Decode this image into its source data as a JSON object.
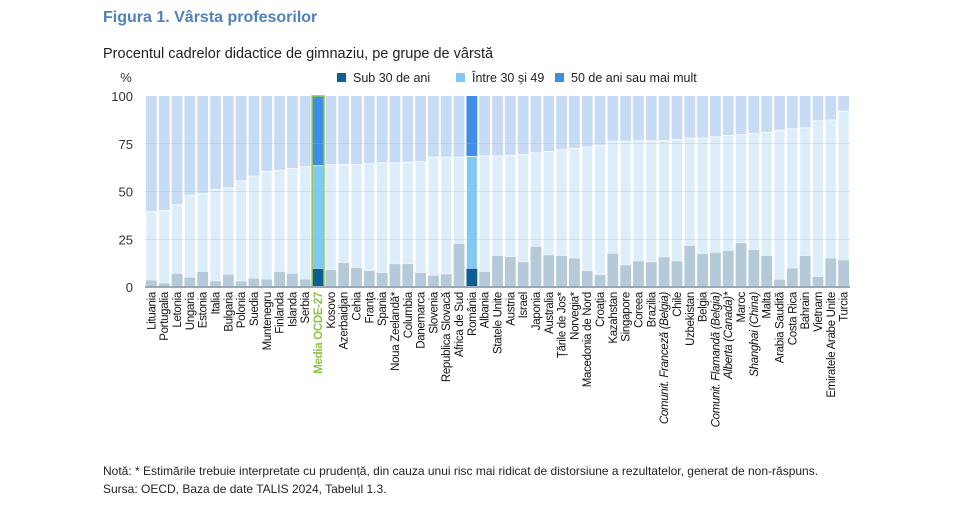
{
  "title": "Figura 1. Vârsta profesorilor",
  "subtitle": "Procentul cadrelor didactice de gimnaziu, pe grupe de vârstă",
  "note": "Notă: * Estimările trebuie interpretate cu prudență, din cauza unui risc mai ridicat de distorsiune a rezultatelor, generat de non-răspuns.",
  "source": "Sursa: OECD, Baza de date TALIS 2024, Tabelul 1.3.",
  "colors": {
    "u30": "#b5cad9",
    "m3049": "#ddeefa",
    "o50": "#c8dbf5",
    "hu30": "#0b5e96",
    "hm3049": "#80c9f2",
    "ho50": "#3f8de6",
    "oecd": "#8cc63f",
    "title": "#4f81bd"
  },
  "chart_data": {
    "type": "bar",
    "stacked": true,
    "ylabel": "%",
    "ylim": [
      0,
      100
    ],
    "yticks": [
      "0",
      "25",
      "50",
      "75",
      "100"
    ],
    "grid": true,
    "legend_placement": "top",
    "series_names": [
      "Sub 30 de ani",
      "Între 30 și 49",
      "50 de ani sau mai mult"
    ],
    "categories": [
      "Lituania",
      "Portugalia",
      "Letonia",
      "Ungaria",
      "Estonia",
      "Italia",
      "Bulgaria",
      "Polonia",
      "Suedia",
      "Muntenegru",
      "Finlanda",
      "Islanda",
      "Serbia",
      "Media OCDE-27",
      "Kosovo",
      "Azerbaidjan",
      "Cehia",
      "Franța",
      "Spania",
      "Noua Zeelandă*",
      "Columbia",
      "Danemarca",
      "Slovenia",
      "Republica Slovacă",
      "Africa de Sud",
      "România",
      "Albania",
      "Statele Unite",
      "Austria",
      "Israel",
      "Japonia",
      "Australia",
      "Țările de Jos*",
      "Norvegia*",
      "Macedonia de Nord",
      "Croația",
      "Kazahstan",
      "Singapore",
      "Coreea",
      "Brazilia",
      "Comunit. Franceză (Belgia)",
      "Chile",
      "Uzbekistan",
      "Belgia",
      "Comunit. Flamandă (Belgia)",
      "Alberta (Canada)*",
      "Maroc",
      "Shanghai (China)",
      "Malta",
      "Arabia Saudită",
      "Costa Rica",
      "Bahrain",
      "Vietnam",
      "Emiratele Arabe Unite",
      "Turcia"
    ],
    "under30": [
      3.5,
      2,
      7,
      5,
      8,
      3,
      6.5,
      3,
      4.5,
      4,
      8,
      7,
      4,
      9.5,
      9,
      12.6,
      10,
      8.4,
      7.4,
      12,
      12,
      7.4,
      6,
      6.7,
      22.6,
      9.6,
      8,
      16.3,
      15.8,
      13,
      21,
      16.7,
      16.3,
      15,
      8.4,
      6.3,
      17.5,
      11.4,
      13.5,
      13,
      15.6,
      13.5,
      21.6,
      17.4,
      18,
      19,
      23,
      19.5,
      16.3,
      3.9,
      9.8,
      16.3,
      5.3,
      15,
      14
    ],
    "under50": [
      39.5,
      40,
      43,
      48,
      49,
      51,
      52,
      55.6,
      58,
      60.5,
      61,
      62,
      63,
      63.5,
      64,
      64,
      64,
      64.6,
      65,
      65,
      65.3,
      65.6,
      68,
      68,
      68,
      68.4,
      68.6,
      68.6,
      69,
      69.3,
      70.2,
      71,
      71.8,
      72.6,
      73.3,
      74.2,
      76.3,
      76.3,
      76.5,
      76.5,
      76.7,
      77.2,
      78,
      78,
      78.6,
      79.3,
      79.8,
      80.3,
      81,
      82,
      82.8,
      83.3,
      87,
      87.4,
      92
    ],
    "highlight": [
      "Media OCDE-27",
      "România"
    ],
    "italic": [
      "Comunit. Franceză (Belgia)",
      "Comunit. Flamandă (Belgia)",
      "Alberta (Canada)*",
      "Shanghai (China)"
    ]
  }
}
